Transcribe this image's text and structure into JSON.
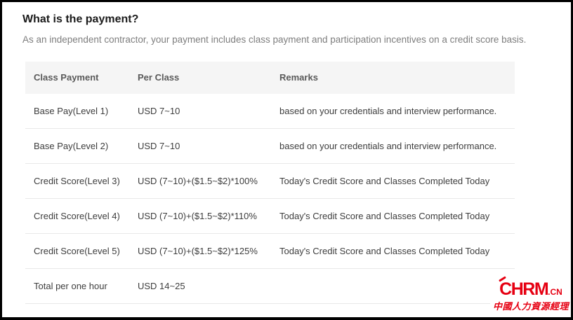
{
  "page": {
    "title": "What is the payment?",
    "subtitle": "As an independent contractor, your payment includes class payment and participation incentives on a credit score basis."
  },
  "table": {
    "columns": [
      "Class Payment",
      "Per Class",
      "Remarks"
    ],
    "rows": [
      {
        "class_payment": "Base Pay(Level 1)",
        "per_class": "USD 7~10",
        "remarks": "based on your credentials and interview performance."
      },
      {
        "class_payment": "Base Pay(Level 2)",
        "per_class": "USD 7~10",
        "remarks": "based on your credentials and interview performance."
      },
      {
        "class_payment": "Credit Score(Level 3)",
        "per_class": "USD (7~10)+($1.5~$2)*100%",
        "remarks": "Today's Credit Score and Classes Completed Today"
      },
      {
        "class_payment": "Credit Score(Level 4)",
        "per_class": "USD (7~10)+($1.5~$2)*110%",
        "remarks": "Today's Credit Score and Classes Completed Today"
      },
      {
        "class_payment": "Credit Score(Level 5)",
        "per_class": "USD (7~10)+($1.5~$2)*125%",
        "remarks": "Today's Credit Score and Classes Completed Today"
      },
      {
        "class_payment": "Total per one hour",
        "per_class": "USD 14~25",
        "remarks": ""
      }
    ]
  },
  "watermark": {
    "brand": "CHRM",
    "tld": ".CN",
    "tagline": "中國人力資源經理",
    "color": "#e60012"
  },
  "colors": {
    "header_bg": "#f5f5f5",
    "row_border": "#e9e9e9",
    "title_text": "#1b1b1b",
    "subtitle_text": "#7e7e7e",
    "header_text": "#595959",
    "cell_text": "#3d3d3d"
  }
}
